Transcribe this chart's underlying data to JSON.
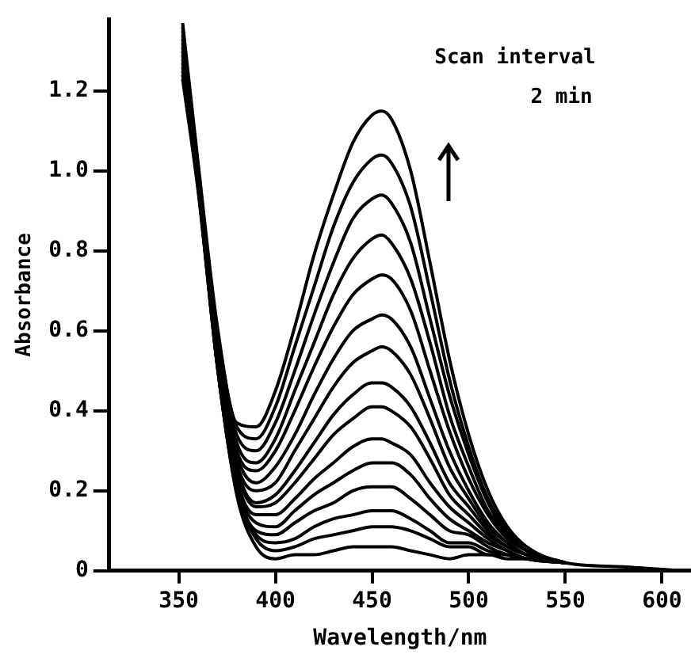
{
  "chart_data": {
    "type": "line",
    "xlabel": "Wavelength/nm",
    "ylabel": "Absorbance",
    "annotations": [
      "Scan interval",
      "2 min"
    ],
    "x": [
      352,
      360,
      370,
      380,
      390,
      400,
      410,
      420,
      430,
      440,
      450,
      455,
      460,
      470,
      480,
      490,
      500,
      510,
      520,
      530,
      550,
      580,
      610
    ],
    "xlim": [
      314,
      615
    ],
    "xticks": [
      350,
      400,
      450,
      500,
      550,
      600
    ],
    "ylim": [
      0,
      1.38
    ],
    "yticks": [
      0,
      0.2,
      0.4,
      0.6,
      0.8,
      {
        "value": 1,
        "label": "1.0"
      },
      1.2
    ],
    "legend": false,
    "marker": "none",
    "line_style": "solid",
    "series": [
      {
        "color": "#000000",
        "values": [
          1.37,
          1.02,
          0.61,
          0.37,
          0.36,
          0.45,
          0.61,
          0.79,
          0.94,
          1.07,
          1.14,
          1.15,
          1.13,
          1.0,
          0.77,
          0.53,
          0.34,
          0.2,
          0.11,
          0.06,
          0.02,
          0.01,
          0
        ]
      },
      {
        "color": "#000000",
        "values": [
          1.36,
          1.01,
          0.6,
          0.36,
          0.33,
          0.41,
          0.56,
          0.71,
          0.86,
          0.97,
          1.03,
          1.04,
          1.02,
          0.91,
          0.7,
          0.48,
          0.31,
          0.18,
          0.1,
          0.05,
          0.02,
          null,
          null
        ]
      },
      {
        "color": "#000000",
        "values": [
          1.35,
          1.01,
          0.59,
          0.34,
          0.3,
          0.37,
          0.5,
          0.64,
          0.77,
          0.88,
          0.93,
          0.94,
          0.92,
          0.82,
          0.63,
          0.44,
          0.29,
          0.17,
          0.09,
          0.05,
          0.02,
          null,
          null
        ]
      },
      {
        "color": "#000000",
        "values": [
          1.34,
          1.0,
          0.58,
          0.32,
          0.27,
          0.33,
          0.45,
          0.57,
          0.69,
          0.78,
          0.83,
          0.84,
          0.82,
          0.73,
          0.57,
          0.39,
          0.26,
          0.15,
          0.09,
          0.05,
          0.02,
          null,
          null
        ]
      },
      {
        "color": "#000000",
        "values": [
          1.33,
          0.99,
          0.57,
          0.3,
          0.25,
          0.3,
          0.4,
          0.51,
          0.61,
          0.69,
          0.73,
          0.74,
          0.73,
          0.65,
          0.5,
          0.35,
          0.23,
          0.14,
          0.08,
          0.05,
          0.02,
          null,
          null
        ]
      },
      {
        "color": "#000000",
        "values": [
          1.32,
          0.99,
          0.56,
          0.29,
          0.22,
          0.26,
          0.34,
          0.44,
          0.53,
          0.6,
          0.63,
          0.64,
          0.63,
          0.56,
          0.43,
          0.3,
          0.2,
          0.12,
          0.07,
          0.04,
          0.02,
          null,
          null
        ]
      },
      {
        "color": "#000000",
        "values": [
          1.31,
          0.98,
          0.56,
          0.27,
          0.2,
          0.22,
          0.3,
          0.38,
          0.46,
          0.52,
          0.55,
          0.56,
          0.55,
          0.49,
          0.38,
          0.26,
          0.18,
          0.11,
          0.07,
          0.04,
          0.02,
          null,
          null
        ]
      },
      {
        "color": "#000000",
        "values": [
          1.3,
          0.98,
          0.55,
          0.26,
          0.17,
          0.19,
          0.25,
          0.32,
          0.39,
          0.44,
          0.47,
          0.47,
          0.46,
          0.41,
          0.32,
          0.22,
          0.16,
          0.1,
          0.06,
          0.04,
          0.02,
          null,
          null
        ]
      },
      {
        "color": "#000000",
        "values": [
          1.29,
          0.97,
          0.54,
          0.25,
          0.16,
          0.17,
          0.22,
          0.28,
          0.34,
          0.38,
          0.41,
          0.41,
          0.4,
          0.36,
          0.28,
          0.19,
          0.14,
          0.09,
          0.06,
          0.04,
          0.02,
          null,
          null
        ]
      },
      {
        "color": "#000000",
        "values": [
          1.28,
          0.97,
          0.53,
          0.23,
          0.14,
          0.14,
          0.18,
          0.23,
          0.27,
          0.31,
          0.33,
          0.33,
          0.32,
          0.29,
          0.22,
          0.16,
          0.12,
          0.08,
          0.05,
          0.03,
          0.02,
          null,
          null
        ]
      },
      {
        "color": "#000000",
        "values": [
          1.27,
          0.97,
          0.53,
          0.22,
          0.12,
          0.11,
          0.15,
          0.19,
          0.22,
          0.25,
          0.27,
          0.27,
          0.27,
          0.24,
          0.18,
          0.13,
          0.1,
          0.07,
          0.05,
          0.03,
          0.02,
          null,
          null
        ]
      },
      {
        "color": "#000000",
        "values": [
          1.26,
          0.96,
          0.52,
          0.21,
          0.1,
          0.09,
          0.12,
          0.15,
          0.17,
          0.2,
          0.21,
          0.21,
          0.21,
          0.18,
          0.14,
          0.1,
          0.09,
          0.06,
          0.04,
          0.03,
          0.02,
          null,
          null
        ]
      },
      {
        "color": "#000000",
        "values": [
          1.25,
          0.96,
          0.51,
          0.2,
          0.09,
          0.07,
          0.08,
          0.11,
          0.13,
          0.14,
          0.15,
          0.15,
          0.15,
          0.13,
          0.1,
          0.07,
          0.07,
          0.05,
          0.04,
          0.03,
          0.02,
          null,
          null
        ]
      },
      {
        "color": "#000000",
        "values": [
          1.24,
          0.96,
          0.51,
          0.2,
          0.08,
          0.05,
          0.06,
          0.08,
          0.09,
          0.1,
          0.11,
          0.11,
          0.11,
          0.1,
          0.08,
          0.06,
          0.06,
          0.04,
          0.04,
          0.03,
          0.02,
          null,
          null
        ]
      },
      {
        "color": "#000000",
        "values": [
          1.23,
          0.95,
          0.51,
          0.19,
          0.06,
          0.03,
          0.04,
          0.04,
          0.05,
          0.06,
          0.06,
          0.06,
          0.06,
          0.05,
          0.04,
          0.03,
          0.04,
          0.04,
          0.03,
          0.03,
          0.02,
          null,
          null
        ]
      }
    ]
  }
}
